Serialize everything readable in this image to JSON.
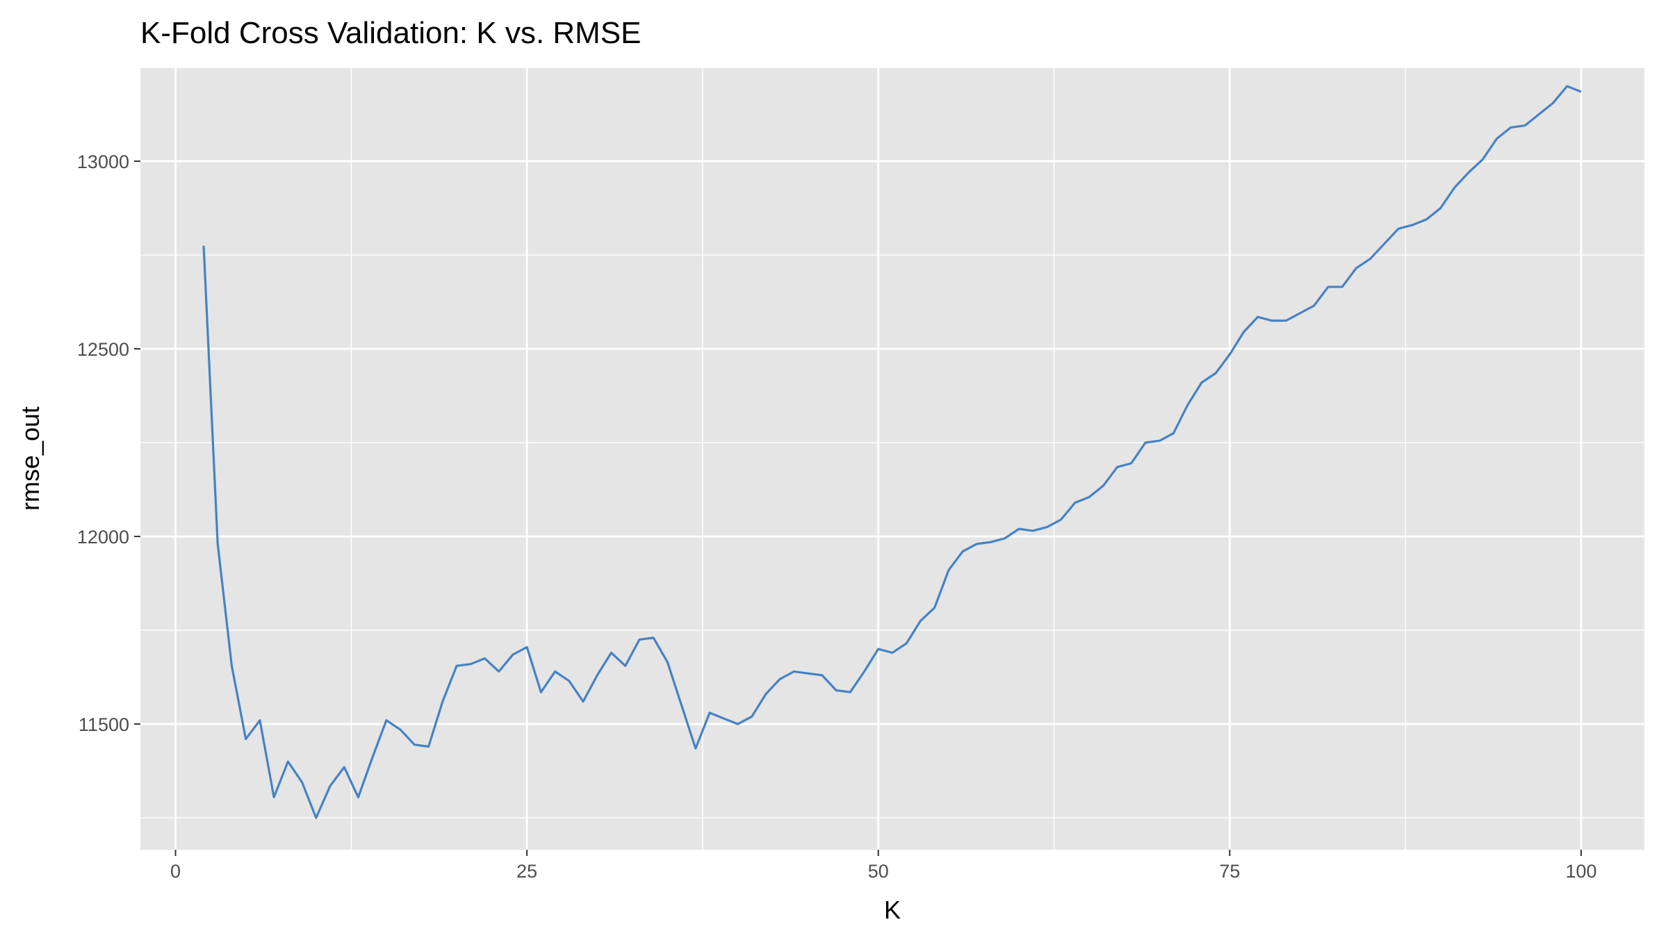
{
  "chart_data": {
    "type": "line",
    "title": "K-Fold Cross Validation: K vs. RMSE",
    "xlabel": "K",
    "ylabel": "rmse_out",
    "xlim": [
      -2.5,
      104.5
    ],
    "ylim": [
      11165,
      13250
    ],
    "x_ticks": [
      0,
      25,
      50,
      75,
      100
    ],
    "y_ticks": [
      11500,
      12000,
      12500,
      13000
    ],
    "grid": true,
    "legend": "none",
    "colors": {
      "line": "#4682C4",
      "panel": "#E5E5E5",
      "grid": "#FFFFFF",
      "tick_text": "#4D4D4D"
    },
    "series": [
      {
        "x": [
          2,
          3,
          4,
          5,
          6,
          7,
          8,
          9,
          10,
          11,
          12,
          13,
          14,
          15,
          16,
          17,
          18,
          19,
          20,
          21,
          22,
          23,
          24,
          25,
          26,
          27,
          28,
          29,
          30,
          31,
          32,
          33,
          34,
          35,
          36,
          37,
          38,
          39,
          40,
          41,
          42,
          43,
          44,
          45,
          46,
          47,
          48,
          49,
          50,
          51,
          52,
          53,
          54,
          55,
          56,
          57,
          58,
          59,
          60,
          61,
          62,
          63,
          64,
          65,
          66,
          67,
          68,
          69,
          70,
          71,
          72,
          73,
          74,
          75,
          76,
          77,
          78,
          79,
          80,
          81,
          82,
          83,
          84,
          85,
          86,
          87,
          88,
          89,
          90,
          91,
          92,
          93,
          94,
          95,
          96,
          97,
          98,
          99,
          100
        ],
        "values": [
          12775,
          11980,
          11655,
          11460,
          11510,
          11305,
          11400,
          11345,
          11250,
          11335,
          11385,
          11305,
          11410,
          11510,
          11485,
          11445,
          11440,
          11560,
          11655,
          11660,
          11675,
          11640,
          11685,
          11705,
          11585,
          11640,
          11615,
          11560,
          11630,
          11690,
          11655,
          11725,
          11730,
          11665,
          11550,
          11435,
          11530,
          11515,
          11500,
          11520,
          11580,
          11620,
          11640,
          11635,
          11630,
          11590,
          11585,
          11640,
          11700,
          11690,
          11715,
          11775,
          11810,
          11910,
          11960,
          11980,
          11985,
          11995,
          12020,
          12015,
          12025,
          12045,
          12090,
          12105,
          12135,
          12185,
          12195,
          12250,
          12255,
          12275,
          12350,
          12410,
          12435,
          12485,
          12545,
          12585,
          12575,
          12575,
          12595,
          12615,
          12665,
          12665,
          12715,
          12740,
          12780,
          12820,
          12830,
          12845,
          12875,
          12930,
          12970,
          13005,
          13060,
          13090,
          13095,
          13125,
          13155,
          13200,
          13185
        ]
      }
    ]
  }
}
